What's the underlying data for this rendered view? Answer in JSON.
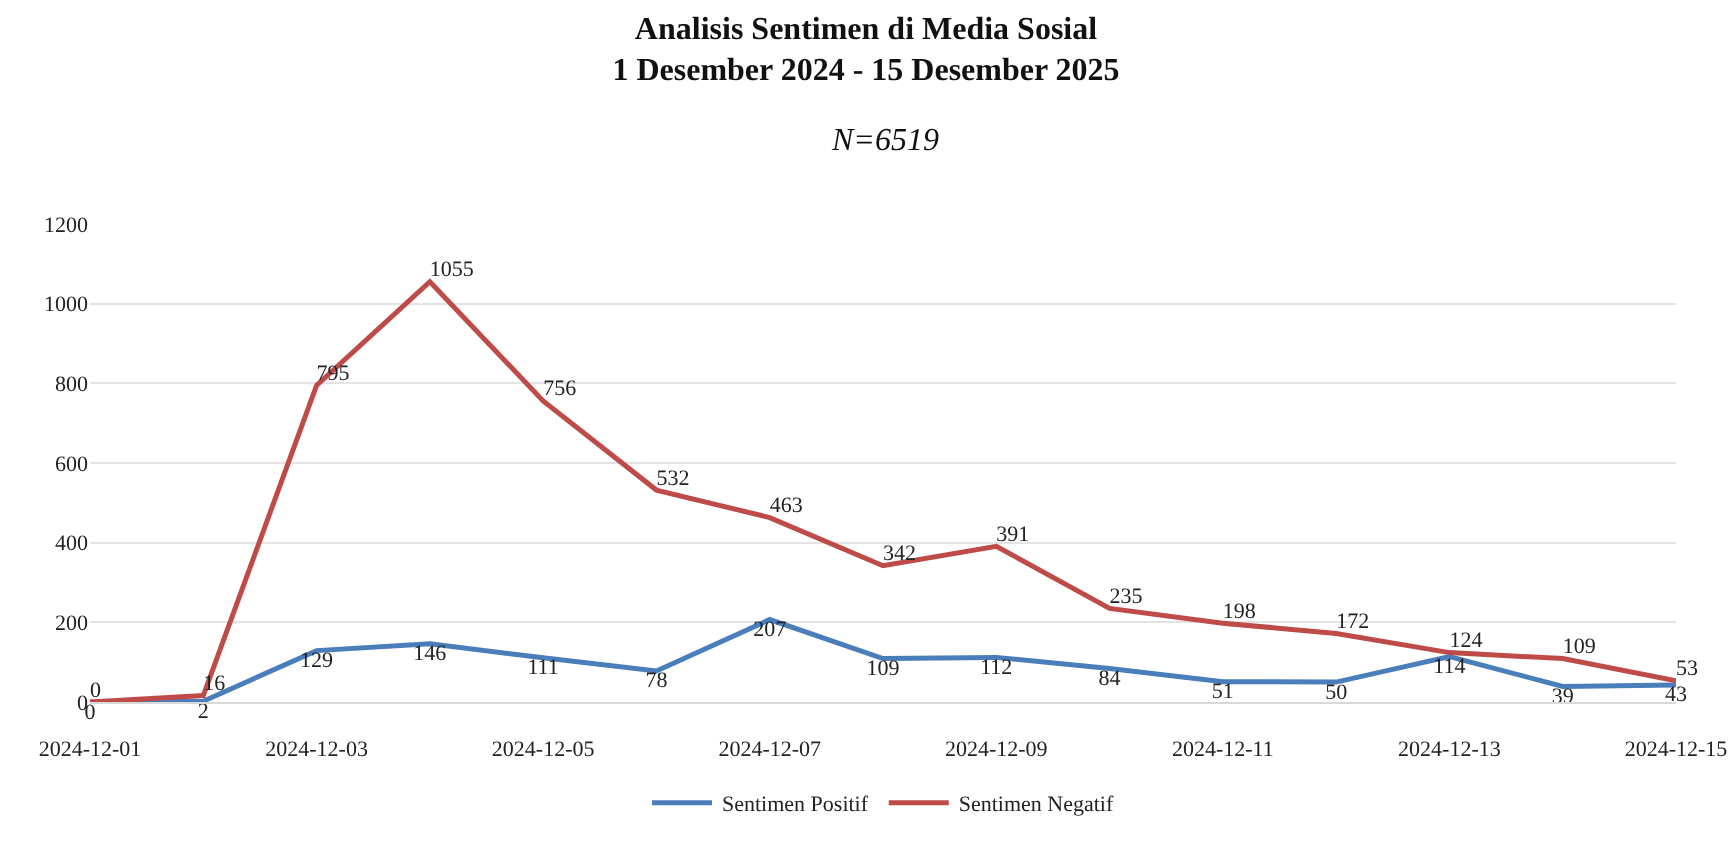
{
  "chart_data": {
    "type": "line",
    "title": "Analisis Sentimen di Media Sosial\n1 Desember 2024 - 15 Desember 2025",
    "subtitle": "N=6519",
    "x": [
      "2024-12-01",
      "2024-12-02",
      "2024-12-03",
      "2024-12-04",
      "2024-12-05",
      "2024-12-06",
      "2024-12-07",
      "2024-12-08",
      "2024-12-09",
      "2024-12-10",
      "2024-12-11",
      "2024-12-12",
      "2024-12-13",
      "2024-12-14",
      "2024-12-15"
    ],
    "series": [
      {
        "name": "Sentimen Positif",
        "color": "#4a7ebb",
        "values": [
          0,
          2,
          129,
          146,
          111,
          78,
          207,
          109,
          112,
          84,
          51,
          50,
          114,
          39,
          43
        ]
      },
      {
        "name": "Sentimen Negatif",
        "color": "#be4b48",
        "values": [
          0,
          16,
          795,
          1055,
          756,
          532,
          463,
          342,
          391,
          235,
          198,
          172,
          124,
          109,
          53
        ]
      }
    ],
    "xlim": [
      "2024-12-01",
      "2024-12-15"
    ],
    "xticks": [
      "2024-12-01",
      "2024-12-03",
      "2024-12-05",
      "2024-12-07",
      "2024-12-09",
      "2024-12-11",
      "2024-12-13",
      "2024-12-15"
    ],
    "ylim": [
      0,
      1200
    ],
    "yticks": [
      0,
      200,
      400,
      600,
      800,
      1000,
      1200
    ],
    "grid": "y",
    "legend": "bottom",
    "data_labels": true,
    "marker": "none",
    "line_style": "solid"
  }
}
